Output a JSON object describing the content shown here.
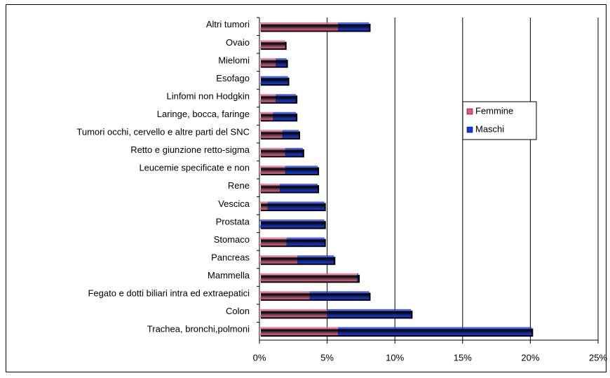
{
  "chart_data": {
    "type": "bar",
    "orientation": "horizontal",
    "stacked": true,
    "categories": [
      "Altri tumori",
      "Ovaio",
      "Mielomi",
      "Esofago",
      "Linfomi non Hodgkin",
      "Laringe, bocca, faringe",
      "Tumori occhi, cervello e altre parti del SNC",
      "Retto e giunzione retto-sigma",
      "Leucemie specificate e non",
      "Rene",
      "Vescica",
      "Prostata",
      "Stomaco",
      "Pancreas",
      "Mammella",
      "Fegato e dotti biliari intra ed extraepatici",
      "Colon",
      "Trachea, bronchi,polmoni"
    ],
    "series": [
      {
        "name": "Femmine",
        "color": "#e8507e",
        "values": [
          5.8,
          1.9,
          1.2,
          0.1,
          1.2,
          1.0,
          1.7,
          1.9,
          1.9,
          1.5,
          0.6,
          0,
          2.0,
          2.8,
          7.2,
          3.7,
          5.0,
          5.8
        ]
      },
      {
        "name": "Maschi",
        "color": "#1234e6",
        "values": [
          2.3,
          0,
          0.8,
          2.0,
          1.5,
          1.7,
          1.2,
          1.3,
          2.4,
          2.8,
          4.2,
          4.8,
          2.8,
          2.7,
          0.1,
          4.4,
          6.2,
          14.3
        ]
      }
    ],
    "xlim": [
      0,
      25
    ],
    "xticks": [
      {
        "value": 0,
        "label": "0%"
      },
      {
        "value": 5,
        "label": "5%"
      },
      {
        "value": 10,
        "label": "10%"
      },
      {
        "value": 15,
        "label": "15%"
      },
      {
        "value": 20,
        "label": "20%"
      },
      {
        "value": 25,
        "label": "25%"
      }
    ],
    "grid": true,
    "legend": "right"
  }
}
